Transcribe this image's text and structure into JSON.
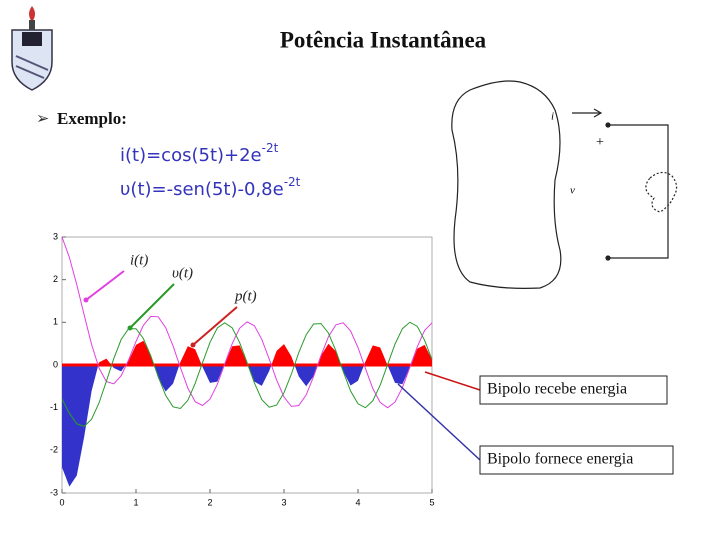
{
  "slide": {
    "title": "Potência Instantânea",
    "bullet": "Exemplo:",
    "formulas": [
      {
        "text": "i(t)=cos(5t)+2e",
        "sup": "-2t"
      },
      {
        "text": "υ(t)=-sen(5t)-0,8e",
        "sup": "-2t"
      }
    ],
    "circuit": {
      "current": "i",
      "plus": "+",
      "voltage": "v"
    }
  },
  "chart_data": {
    "type": "line",
    "x": [
      0,
      0.1,
      0.2,
      0.3,
      0.4,
      0.5,
      0.6,
      0.7,
      0.8,
      0.9,
      1,
      1.1,
      1.2,
      1.3,
      1.4,
      1.5,
      1.6,
      1.7,
      1.8,
      1.9,
      2,
      2.1,
      2.2,
      2.3,
      2.4,
      2.5,
      2.6,
      2.7,
      2.8,
      2.9,
      3,
      3.1,
      3.2,
      3.3,
      3.4,
      3.5,
      3.6,
      3.7,
      3.8,
      3.9,
      4,
      4.1,
      4.2,
      4.3,
      4.4,
      4.5,
      4.6,
      4.7,
      4.8,
      4.9,
      5
    ],
    "series": [
      {
        "name": "i(t)",
        "color": "#e040e0",
        "values": [
          3,
          2.52,
          1.88,
          1.17,
          0.48,
          -0.07,
          -0.39,
          -0.44,
          -0.25,
          0.12,
          0.55,
          0.93,
          1.14,
          1.13,
          0.88,
          0.45,
          -0.06,
          -0.54,
          -0.86,
          -0.95,
          -0.8,
          -0.45,
          0.03,
          0.5,
          0.86,
          1.01,
          0.92,
          0.6,
          0.14,
          -0.35,
          -0.75,
          -0.97,
          -0.95,
          -0.7,
          -0.27,
          0.22,
          0.66,
          0.94,
          0.99,
          0.8,
          0.41,
          -0.08,
          -0.55,
          -0.88,
          -1,
          -0.87,
          -0.53,
          -0.06,
          0.42,
          0.81,
          0.99
        ]
      },
      {
        "name": "υ(t)",
        "color": "#2a9a2a",
        "values": [
          -0.8,
          -1.13,
          -1.38,
          -1.44,
          -1.27,
          -0.89,
          -0.38,
          0.15,
          0.6,
          0.85,
          0.85,
          0.62,
          0.21,
          -0.27,
          -0.71,
          -0.98,
          -1.02,
          -0.83,
          -0.43,
          0.06,
          0.53,
          0.87,
          0.99,
          0.87,
          0.53,
          0.06,
          -0.42,
          -0.81,
          -0.99,
          -0.94,
          -0.65,
          -0.21,
          0.29,
          0.71,
          0.96,
          0.97,
          0.75,
          0.34,
          -0.15,
          -0.61,
          -0.91,
          -1,
          -0.84,
          -0.47,
          0.01,
          0.49,
          0.85,
          1,
          0.91,
          0.58,
          0.13
        ]
      },
      {
        "name": "p(t)",
        "color": "#ff0000",
        "negative_color": "#3333cc",
        "values": [
          -2.4,
          -2.85,
          -2.59,
          -1.68,
          -0.61,
          0.06,
          0.15,
          -0.07,
          -0.15,
          0.1,
          0.47,
          0.57,
          0.24,
          -0.31,
          -0.62,
          -0.44,
          0.07,
          0.44,
          0.37,
          -0.05,
          -0.42,
          -0.39,
          0.03,
          0.44,
          0.46,
          0.06,
          -0.39,
          -0.49,
          -0.14,
          0.33,
          0.49,
          0.2,
          -0.27,
          -0.5,
          -0.26,
          0.22,
          0.5,
          0.32,
          -0.15,
          -0.48,
          -0.37,
          0.08,
          0.46,
          0.41,
          -0.01,
          -0.42,
          -0.45,
          -0.06,
          0.38,
          0.47,
          0.13
        ],
        "fill": true
      }
    ],
    "annotations": [
      "Bipolo recebe energia",
      "Bipolo fornece energia"
    ],
    "xlim": [
      0,
      5
    ],
    "xticks": [
      0,
      1,
      2,
      3,
      4,
      5
    ],
    "ylim": [
      -3,
      3
    ],
    "yticks": [
      -3,
      -2,
      -1,
      0,
      1,
      2,
      3
    ]
  }
}
